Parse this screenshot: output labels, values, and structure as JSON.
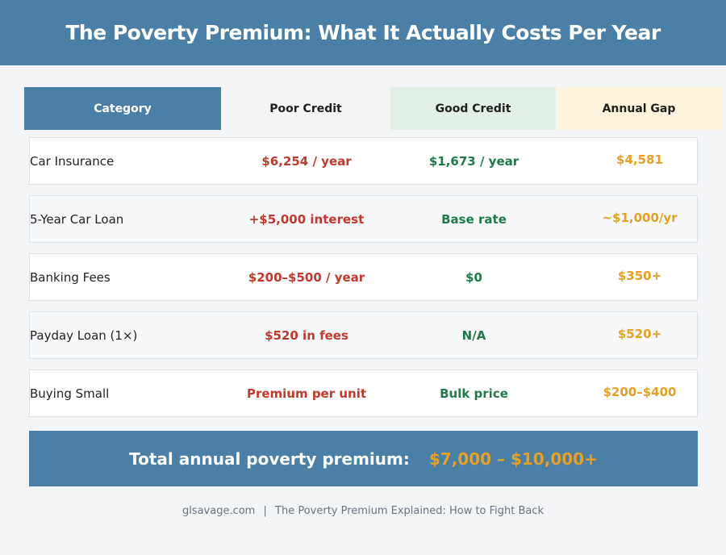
{
  "title": "The Poverty Premium: What It Actually Costs Per Year",
  "headers": [
    "Category",
    "Poor Credit",
    "Good Credit",
    "Annual Gap"
  ],
  "rows": [
    {
      "category": "Car Insurance",
      "poor": "$6,254 / year",
      "good": "$1,673 / year",
      "gap": "$4,581"
    },
    {
      "category": "5-Year Car Loan",
      "poor": "+$5,000 interest",
      "good": "Base rate",
      "gap": "~$1,000/yr"
    },
    {
      "category": "Banking Fees",
      "poor": "$200–$500 / year",
      "good": "$0",
      "gap": "$350+"
    },
    {
      "category": "Payday Loan (1×)",
      "poor": "$520 in fees",
      "good": "N/A",
      "gap": "$520+"
    },
    {
      "category": "Buying Small",
      "poor": "Premium per unit",
      "good": "Bulk price",
      "gap": "$200–$400"
    }
  ],
  "total": {
    "label": "Total annual poverty premium:",
    "value": "$7,000 – $10,000+"
  },
  "footer": {
    "site": "glsavage.com",
    "separator": "|",
    "article": "The Poverty Premium Explained: How to Fight Back"
  },
  "colors": {
    "brand": "#4a7fa7",
    "poor": "#c0392b",
    "good": "#1e7a4b",
    "gap": "#e8a020"
  }
}
